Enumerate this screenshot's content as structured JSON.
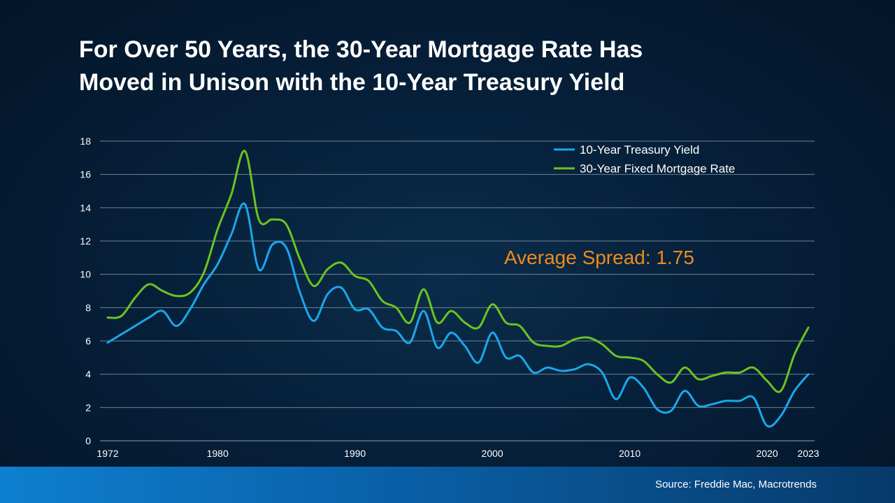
{
  "title": {
    "line1": "For Over 50 Years, the 30-Year Mortgage Rate Has",
    "line2": "Moved in Unison with the 10-Year Treasury Yield"
  },
  "source": "Source: Freddie Mac, Macrotrends",
  "colors": {
    "treasury": "#1aa7ec",
    "mortgage": "#6cc31f",
    "annotation": "#ef8a1e",
    "grid": "#6e8396",
    "text": "#ffffff"
  },
  "chart_data": {
    "type": "line",
    "title": "For Over 50 Years, the 30-Year Mortgage Rate Has Moved in Unison with the 10-Year Treasury Yield",
    "xlabel": "",
    "ylabel": "",
    "xlim": [
      1972,
      2023
    ],
    "ylim": [
      0,
      18
    ],
    "yticks": [
      0,
      2,
      4,
      6,
      8,
      10,
      12,
      14,
      16,
      18
    ],
    "xticks": [
      1972,
      1980,
      1990,
      2000,
      2010,
      2020,
      2023
    ],
    "grid": true,
    "legend_position": "top-right",
    "annotation": "Average Spread: 1.75",
    "x": [
      1972,
      1973,
      1974,
      1975,
      1976,
      1977,
      1978,
      1979,
      1980,
      1981,
      1982,
      1983,
      1984,
      1985,
      1986,
      1987,
      1988,
      1989,
      1990,
      1991,
      1992,
      1993,
      1994,
      1995,
      1996,
      1997,
      1998,
      1999,
      2000,
      2001,
      2002,
      2003,
      2004,
      2005,
      2006,
      2007,
      2008,
      2009,
      2010,
      2011,
      2012,
      2013,
      2014,
      2015,
      2016,
      2017,
      2018,
      2019,
      2020,
      2021,
      2022,
      2023
    ],
    "series": [
      {
        "name": "10-Year Treasury Yield",
        "values": [
          5.9,
          6.4,
          6.9,
          7.4,
          7.8,
          6.9,
          7.9,
          9.4,
          10.6,
          12.4,
          14.2,
          10.3,
          11.8,
          11.6,
          8.9,
          7.2,
          8.8,
          9.2,
          7.9,
          7.9,
          6.8,
          6.6,
          5.9,
          7.8,
          5.6,
          6.5,
          5.7,
          4.7,
          6.5,
          5.0,
          5.1,
          4.1,
          4.4,
          4.2,
          4.3,
          4.6,
          4.1,
          2.5,
          3.8,
          3.2,
          1.9,
          1.8,
          3.0,
          2.1,
          2.2,
          2.4,
          2.4,
          2.6,
          0.9,
          1.5,
          3.0,
          4.0
        ]
      },
      {
        "name": "30-Year Fixed Mortgage Rate",
        "values": [
          7.4,
          7.5,
          8.6,
          9.4,
          9.0,
          8.7,
          8.9,
          10.1,
          12.7,
          14.8,
          17.4,
          13.3,
          13.3,
          13.0,
          10.9,
          9.3,
          10.3,
          10.7,
          9.9,
          9.6,
          8.4,
          8.0,
          7.1,
          9.1,
          7.1,
          7.8,
          7.1,
          6.8,
          8.2,
          7.1,
          6.9,
          5.9,
          5.7,
          5.7,
          6.1,
          6.2,
          5.8,
          5.1,
          5.0,
          4.8,
          4.0,
          3.5,
          4.4,
          3.7,
          3.9,
          4.1,
          4.1,
          4.4,
          3.6,
          3.0,
          5.2,
          6.8
        ]
      }
    ]
  }
}
